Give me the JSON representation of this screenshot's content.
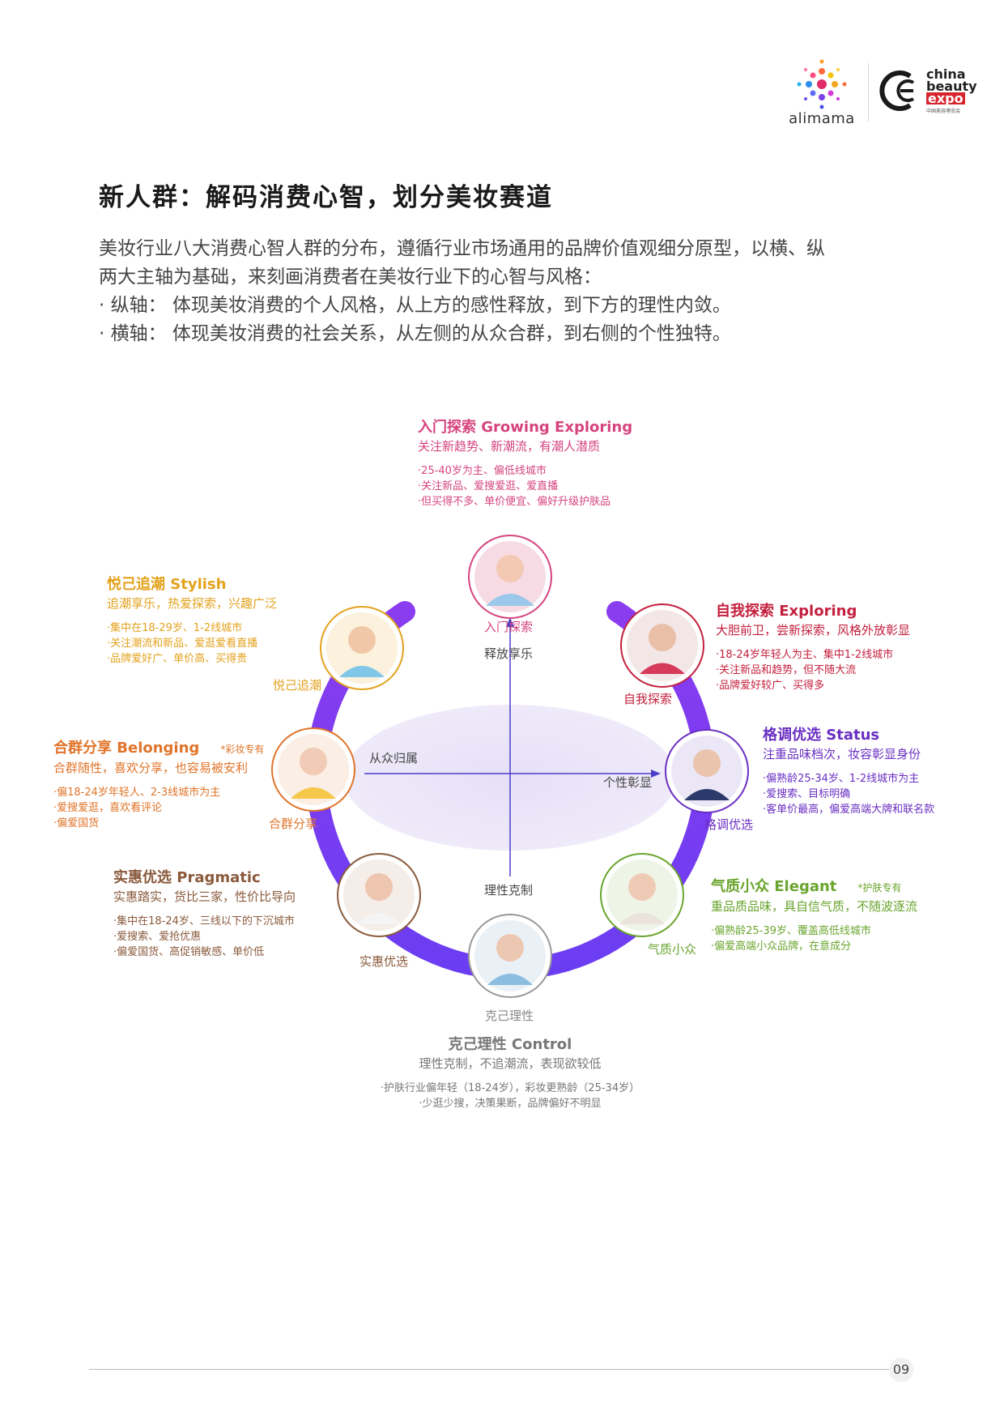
{
  "header": {
    "alimama_text": "alimama",
    "cbe_line1": "china",
    "cbe_line2": "beauty",
    "cbe_line3": "expo",
    "cbe_sub": "中国美容博览会"
  },
  "title": "新人群：解码消费心智，划分美妆赛道",
  "intro": [
    "美妆行业八大消费心智人群的分布，遵循行业市场通用的品牌价值观细分原型，以横、纵",
    "两大主轴为基础，来刻画消费者在美妆行业下的心智与风格：",
    "· 纵轴：  体现美妆消费的个人风格，从上方的感性释放，到下方的理性内敛。",
    "· 横轴：  体现美妆消费的社会关系，从左侧的从众合群，到右侧的个性独特。"
  ],
  "axes": {
    "top": "释放享乐",
    "bottom": "理性克制",
    "left": "从众归属",
    "right": "个性彰显"
  },
  "segments": {
    "growing": {
      "heading": "入门探索 Growing Exploring",
      "desc": "关注新趋势、新潮流，有潮人潜质",
      "bullets": [
        "·25-40岁为主、偏低线城市",
        "·关注新品、爱搜爱逛、爱直播",
        "·但买得不多、单价便宜、偏好升级护肤品"
      ],
      "ring_label": "入门探索",
      "color": "#d6447f"
    },
    "exploring": {
      "heading": "自我探索 Exploring",
      "desc": "大胆前卫，尝新探索，风格外放彰显",
      "bullets": [
        "·18-24岁年轻人为主、集中1-2线城市",
        "·关注新品和趋势，但不随大流",
        "·品牌爱好较广、买得多"
      ],
      "ring_label": "自我探索",
      "color": "#c4203e"
    },
    "status": {
      "heading": "格调优选 Status",
      "desc": "注重品味档次，妆容彰显身份",
      "bullets": [
        "·偏熟龄25-34岁、1-2线城市为主",
        "·爱搜索、目标明确",
        "·客单价最高，偏爱高端大牌和联名款"
      ],
      "ring_label": "格调优选",
      "color": "#6a2fc2"
    },
    "elegant": {
      "heading": "气质小众 Elegant",
      "note": "*护肤专有",
      "desc": "重品质品味，具自信气质，不随波逐流",
      "bullets": [
        "·偏熟龄25-39岁、覆盖高低线城市",
        "·偏爱高端小众品牌，在意成分"
      ],
      "ring_label": "气质小众",
      "color": "#6aa52e"
    },
    "control": {
      "heading": "克己理性 Control",
      "desc": "理性克制，不追潮流，表现欲较低",
      "bullets": [
        "·护肤行业偏年轻（18-24岁），彩妆更熟龄（25-34岁）",
        "·少逛少搜，决策果断，品牌偏好不明显"
      ],
      "ring_label": "克己理性",
      "color": "#777777"
    },
    "pragmatic": {
      "heading": "实惠优选 Pragmatic",
      "desc": "实惠踏实，货比三家，性价比导向",
      "bullets": [
        "·集中在18-24岁、三线以下的下沉城市",
        "·爱搜索、爱抢优惠",
        "·偏爱国货、高促销敏感、单价低"
      ],
      "ring_label": "实惠优选",
      "color": "#8a5a3c"
    },
    "belonging": {
      "heading": "合群分享 Belonging",
      "note": "*彩妆专有",
      "desc": "合群随性，喜欢分享，也容易被安利",
      "bullets": [
        "·偏18-24岁年轻人、2-3线城市为主",
        "·爱搜爱逛，喜欢看评论",
        "·偏爱国货"
      ],
      "ring_label": "合群分享",
      "color": "#e0742a"
    },
    "stylish": {
      "heading": "悦己追潮 Stylish",
      "desc": "追潮享乐，热爱探索，兴趣广泛",
      "bullets": [
        "·集中在18-29岁、1-2线城市",
        "·关注潮流和新品、爱逛爱看直播",
        "·品牌爱好广、单价高、买得贵"
      ],
      "ring_label": "悦己追潮",
      "color": "#e3a21c"
    }
  },
  "page_number": "09"
}
